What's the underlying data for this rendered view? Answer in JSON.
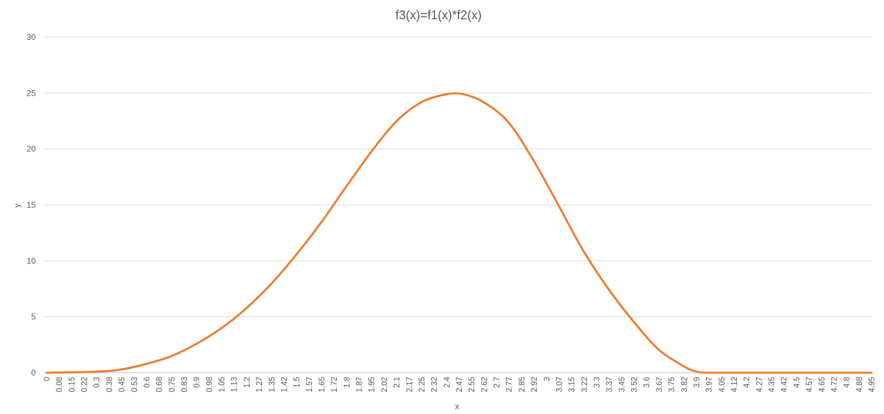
{
  "chart_data": {
    "type": "line",
    "title": "f3(x)=f1(x)*f2(x)",
    "xlabel": "x",
    "ylabel": "y",
    "ylim": [
      0,
      30
    ],
    "yticks": [
      0,
      5,
      10,
      15,
      20,
      25,
      30
    ],
    "grid": true,
    "legend": "none",
    "colors": {
      "line": "#ED7D31",
      "grid": "#D9D9D9",
      "axis": "#BFBFBF",
      "text": "#595959"
    },
    "x_tick_labels": [
      "0",
      "0.08",
      "0.15",
      "0.22",
      "0.3",
      "0.38",
      "0.45",
      "0.53",
      "0.6",
      "0.68",
      "0.75",
      "0.83",
      "0.9",
      "0.98",
      "1.05",
      "1.13",
      "1.2",
      "1.27",
      "1.35",
      "1.42",
      "1.5",
      "1.57",
      "1.65",
      "1.72",
      "1.8",
      "1.87",
      "1.95",
      "2.02",
      "2.1",
      "2.17",
      "2.25",
      "2.32",
      "2.4",
      "2.47",
      "2.55",
      "2.62",
      "2.7",
      "2.77",
      "2.85",
      "2.92",
      "3",
      "3.07",
      "3.15",
      "3.22",
      "3.3",
      "3.37",
      "3.45",
      "3.52",
      "3.6",
      "3.67",
      "3.75",
      "3.82",
      "3.9",
      "3.97",
      "4.05",
      "4.12",
      "4.2",
      "4.27",
      "4.35",
      "4.42",
      "4.5",
      "4.57",
      "4.65",
      "4.72",
      "4.8",
      "4.88",
      "4.95"
    ],
    "series": [
      {
        "x": [
          0,
          0.3,
          0.45,
          0.6,
          0.75,
          0.9,
          1.05,
          1.2,
          1.35,
          1.5,
          1.65,
          1.8,
          1.95,
          2.1,
          2.25,
          2.4,
          2.5,
          2.62,
          2.77,
          2.92,
          3.07,
          3.22,
          3.37,
          3.52,
          3.67,
          3.82,
          3.9,
          3.97,
          4.2,
          4.5,
          4.8,
          4.95
        ],
        "values": [
          0,
          0.1,
          0.3,
          0.8,
          1.5,
          2.6,
          4.0,
          5.8,
          8.0,
          10.6,
          13.5,
          16.7,
          19.8,
          22.5,
          24.2,
          24.9,
          24.9,
          24.2,
          22.4,
          19.0,
          15.0,
          10.9,
          7.5,
          4.6,
          2.1,
          0.6,
          0.1,
          0,
          0,
          0,
          0,
          0
        ]
      }
    ]
  }
}
